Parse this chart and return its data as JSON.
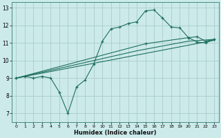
{
  "xlabel": "Humidex (Indice chaleur)",
  "bg_color": "#cceaea",
  "grid_color": "#aacccc",
  "line_color": "#1e6e60",
  "xlim": [
    -0.5,
    23.5
  ],
  "ylim": [
    6.5,
    13.3
  ],
  "xticks": [
    0,
    1,
    2,
    3,
    4,
    5,
    6,
    7,
    8,
    9,
    10,
    11,
    12,
    13,
    14,
    15,
    16,
    17,
    18,
    19,
    20,
    21,
    22,
    23
  ],
  "yticks": [
    7,
    8,
    9,
    10,
    11,
    12,
    13
  ],
  "line1_x": [
    0,
    1,
    2,
    3,
    4,
    5,
    6,
    7,
    8,
    9,
    10,
    11,
    12,
    13,
    14,
    15,
    16,
    17,
    18,
    19,
    20,
    21,
    22,
    23
  ],
  "line1_y": [
    9.0,
    9.1,
    9.0,
    9.1,
    9.0,
    8.2,
    7.0,
    8.5,
    8.9,
    9.8,
    11.1,
    11.8,
    11.9,
    12.1,
    12.2,
    12.82,
    12.87,
    12.4,
    11.9,
    11.85,
    11.3,
    11.05,
    11.0,
    11.2
  ],
  "line2_x": [
    0,
    23
  ],
  "line2_y": [
    9.0,
    11.15
  ],
  "line3_x": [
    0,
    14,
    20,
    23
  ],
  "line3_y": [
    9.0,
    10.55,
    11.1,
    11.2
  ],
  "line4_x": [
    0,
    15,
    20,
    21,
    22,
    23
  ],
  "line4_y": [
    9.0,
    10.95,
    11.3,
    11.35,
    11.1,
    11.2
  ]
}
